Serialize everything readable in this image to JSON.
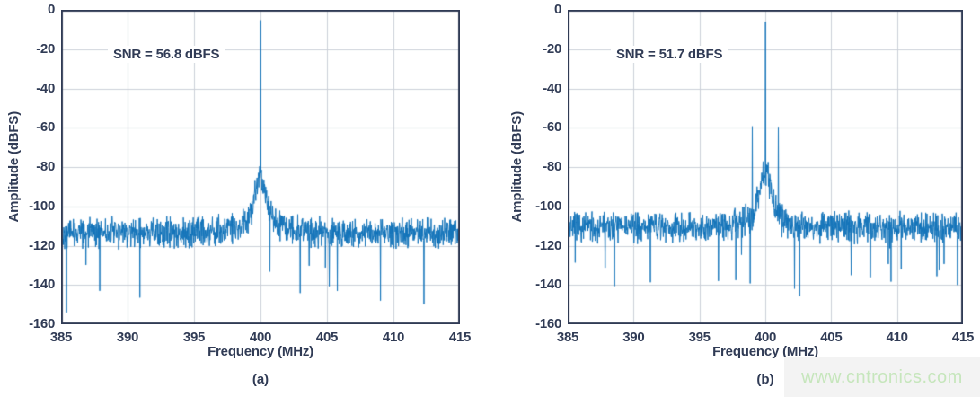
{
  "figure": {
    "background": "#ffffff",
    "watermark": {
      "text": "www.cntronics.com",
      "color": "#c6e6bc",
      "bg": "#f3f3f3"
    }
  },
  "style": {
    "trace_color": "#1273b9",
    "axis_color": "#303b55",
    "grid_color": "#cbd0d8",
    "text_color": "#303b55",
    "annotation_bg": "#ffffff"
  },
  "chart_data": [
    {
      "type": "line",
      "panel_label": "(a)",
      "annotation": "SNR = 56.8 dBFS",
      "xlabel": "Frequency (MHz)",
      "ylabel": "Amplitude (dBFS)",
      "xlim": [
        385,
        415
      ],
      "ylim": [
        -160,
        0
      ],
      "xticks": [
        385,
        390,
        395,
        400,
        405,
        410,
        415
      ],
      "xtick_labels": [
        "385",
        "390",
        "395",
        "400",
        "405",
        "410",
        "415"
      ],
      "yticks": [
        0,
        -20,
        -40,
        -60,
        -80,
        -100,
        -120,
        -140,
        -160
      ],
      "ytick_labels": [
        "0",
        "-20",
        "-40",
        "-60",
        "-80",
        "-100",
        "-120",
        "-140",
        "-160"
      ],
      "grid": true,
      "legend": false,
      "noise_floor_dbfs": -113.5,
      "noise_spread_db": 9,
      "dip_probability": 0.012,
      "dip_extra_db": 30,
      "skirt": {
        "center_mhz": 400,
        "sigma_mhz": 0.42,
        "rise_db": 24,
        "broad_sigma_mhz": 1.9,
        "broad_rise_db": 5
      },
      "peaks": [
        {
          "freq_mhz": 400.0,
          "amp_dbfs": -5.3
        }
      ],
      "deep_dips": [
        {
          "freq_mhz": 385.4,
          "amp_dbfs": -154
        },
        {
          "freq_mhz": 387.9,
          "amp_dbfs": -143
        }
      ],
      "seed": 42
    },
    {
      "type": "line",
      "panel_label": "(b)",
      "annotation": "SNR = 51.7 dBFS",
      "xlabel": "Frequency (MHz)",
      "ylabel": "Amplitude (dBFS)",
      "xlim": [
        385,
        415
      ],
      "ylim": [
        -160,
        0
      ],
      "xticks": [
        385,
        390,
        395,
        400,
        405,
        410,
        415
      ],
      "xtick_labels": [
        "385",
        "390",
        "395",
        "400",
        "405",
        "410",
        "415"
      ],
      "yticks": [
        0,
        -20,
        -40,
        -60,
        -80,
        -100,
        -120,
        -140,
        -160
      ],
      "ytick_labels": [
        "0",
        "-20",
        "-40",
        "-60",
        "-80",
        "-100",
        "-120",
        "-140",
        "-160"
      ],
      "grid": true,
      "legend": false,
      "noise_floor_dbfs": -110.5,
      "noise_spread_db": 9,
      "dip_probability": 0.012,
      "dip_extra_db": 26,
      "skirt": {
        "center_mhz": 400,
        "sigma_mhz": 0.45,
        "rise_db": 24,
        "broad_sigma_mhz": 1.9,
        "broad_rise_db": 4
      },
      "peaks": [
        {
          "freq_mhz": 400.0,
          "amp_dbfs": -6.0
        },
        {
          "freq_mhz": 399.0,
          "amp_dbfs": -59.3
        },
        {
          "freq_mhz": 401.0,
          "amp_dbfs": -59.6
        }
      ],
      "deep_dips": [
        {
          "freq_mhz": 414.6,
          "amp_dbfs": -140
        }
      ],
      "seed": 7
    }
  ]
}
